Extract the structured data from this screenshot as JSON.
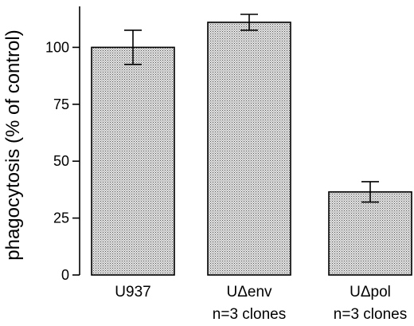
{
  "chart_data": {
    "type": "bar",
    "title": "",
    "xlabel": "",
    "ylabel": "phagocytosis (% of control)",
    "ylim": [
      0,
      118
    ],
    "yticks": [
      0,
      25,
      50,
      75,
      100
    ],
    "grid": false,
    "categories": [
      {
        "line1": "U937",
        "line2": ""
      },
      {
        "line1": "UΔenv",
        "line2": "n=3 clones"
      },
      {
        "line1": "UΔpol",
        "line2": "n=3 clones"
      }
    ],
    "values": [
      100,
      111,
      36.5
    ],
    "errors": [
      7.5,
      3.5,
      4.5
    ],
    "bar_fill": "#c8c8c8"
  }
}
